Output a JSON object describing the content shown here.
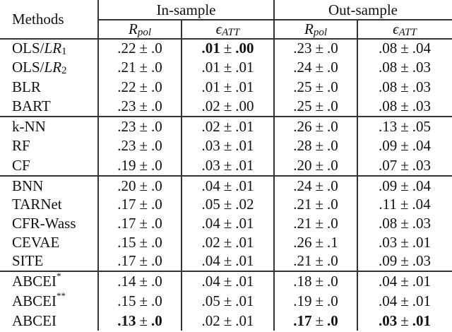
{
  "table": {
    "header": {
      "methods": "Methods",
      "groups": [
        "In-sample",
        "Out-sample"
      ],
      "metrics": [
        {
          "base": "R",
          "sub": "pol"
        },
        {
          "base": "ϵ",
          "sub": "ATT"
        },
        {
          "base": "R",
          "sub": "pol"
        },
        {
          "base": "ϵ",
          "sub": "ATT"
        }
      ]
    },
    "row_groups": [
      [
        {
          "method": "OLS/",
          "method_math": "LR",
          "method_sub": "1",
          "method_sup": "",
          "values": [
            {
              "mean": ".22",
              "std": ".0",
              "bold": false
            },
            {
              "mean": ".01",
              "std": ".00",
              "bold": true
            },
            {
              "mean": ".23",
              "std": ".0",
              "bold": false
            },
            {
              "mean": ".08",
              "std": ".04",
              "bold": false
            }
          ]
        },
        {
          "method": "OLS/",
          "method_math": "LR",
          "method_sub": "2",
          "method_sup": "",
          "values": [
            {
              "mean": ".21",
              "std": ".0",
              "bold": false
            },
            {
              "mean": ".01",
              "std": ".01",
              "bold": false
            },
            {
              "mean": ".24",
              "std": ".0",
              "bold": false
            },
            {
              "mean": ".08",
              "std": ".03",
              "bold": false
            }
          ]
        },
        {
          "method": "BLR",
          "method_math": "",
          "method_sub": "",
          "method_sup": "",
          "values": [
            {
              "mean": ".22",
              "std": ".0",
              "bold": false
            },
            {
              "mean": ".01",
              "std": ".01",
              "bold": false
            },
            {
              "mean": ".25",
              "std": ".0",
              "bold": false
            },
            {
              "mean": ".08",
              "std": ".03",
              "bold": false
            }
          ]
        },
        {
          "method": "BART",
          "method_math": "",
          "method_sub": "",
          "method_sup": "",
          "values": [
            {
              "mean": ".23",
              "std": ".0",
              "bold": false
            },
            {
              "mean": ".02",
              "std": ".00",
              "bold": false
            },
            {
              "mean": ".25",
              "std": ".0",
              "bold": false
            },
            {
              "mean": ".08",
              "std": ".03",
              "bold": false
            }
          ]
        }
      ],
      [
        {
          "method": "k-NN",
          "method_math": "",
          "method_sub": "",
          "method_sup": "",
          "values": [
            {
              "mean": ".23",
              "std": ".0",
              "bold": false
            },
            {
              "mean": ".02",
              "std": ".01",
              "bold": false
            },
            {
              "mean": ".26",
              "std": ".0",
              "bold": false
            },
            {
              "mean": ".13",
              "std": ".05",
              "bold": false
            }
          ]
        },
        {
          "method": "RF",
          "method_math": "",
          "method_sub": "",
          "method_sup": "",
          "values": [
            {
              "mean": ".23",
              "std": ".0",
              "bold": false
            },
            {
              "mean": ".03",
              "std": ".01",
              "bold": false
            },
            {
              "mean": ".28",
              "std": ".0",
              "bold": false
            },
            {
              "mean": ".09",
              "std": ".04",
              "bold": false
            }
          ]
        },
        {
          "method": "CF",
          "method_math": "",
          "method_sub": "",
          "method_sup": "",
          "values": [
            {
              "mean": ".19",
              "std": ".0",
              "bold": false
            },
            {
              "mean": ".03",
              "std": ".01",
              "bold": false
            },
            {
              "mean": ".20",
              "std": ".0",
              "bold": false
            },
            {
              "mean": ".07",
              "std": ".03",
              "bold": false
            }
          ]
        }
      ],
      [
        {
          "method": "BNN",
          "method_math": "",
          "method_sub": "",
          "method_sup": "",
          "values": [
            {
              "mean": ".20",
              "std": ".0",
              "bold": false
            },
            {
              "mean": ".04",
              "std": ".01",
              "bold": false
            },
            {
              "mean": ".24",
              "std": ".0",
              "bold": false
            },
            {
              "mean": ".09",
              "std": ".04",
              "bold": false
            }
          ]
        },
        {
          "method": "TARNet",
          "method_math": "",
          "method_sub": "",
          "method_sup": "",
          "values": [
            {
              "mean": ".17",
              "std": ".0",
              "bold": false
            },
            {
              "mean": ".05",
              "std": ".02",
              "bold": false
            },
            {
              "mean": ".21",
              "std": ".0",
              "bold": false
            },
            {
              "mean": ".11",
              "std": ".04",
              "bold": false
            }
          ]
        },
        {
          "method": "CFR-Wass",
          "method_math": "",
          "method_sub": "",
          "method_sup": "",
          "values": [
            {
              "mean": ".17",
              "std": ".0",
              "bold": false
            },
            {
              "mean": ".04",
              "std": ".01",
              "bold": false
            },
            {
              "mean": ".21",
              "std": ".0",
              "bold": false
            },
            {
              "mean": ".08",
              "std": ".03",
              "bold": false
            }
          ]
        },
        {
          "method": "CEVAE",
          "method_math": "",
          "method_sub": "",
          "method_sup": "",
          "values": [
            {
              "mean": ".15",
              "std": ".0",
              "bold": false
            },
            {
              "mean": ".02",
              "std": ".01",
              "bold": false
            },
            {
              "mean": ".26",
              "std": ".1",
              "bold": false
            },
            {
              "mean": ".03",
              "std": ".01",
              "bold": false
            }
          ]
        },
        {
          "method": "SITE",
          "method_math": "",
          "method_sub": "",
          "method_sup": "",
          "values": [
            {
              "mean": ".17",
              "std": ".0",
              "bold": false
            },
            {
              "mean": ".04",
              "std": ".01",
              "bold": false
            },
            {
              "mean": ".21",
              "std": ".0",
              "bold": false
            },
            {
              "mean": ".09",
              "std": ".03",
              "bold": false
            }
          ]
        }
      ],
      [
        {
          "method": "ABCEI",
          "method_math": "",
          "method_sub": "",
          "method_sup": "*",
          "values": [
            {
              "mean": ".14",
              "std": ".0",
              "bold": false
            },
            {
              "mean": ".04",
              "std": ".01",
              "bold": false
            },
            {
              "mean": ".18",
              "std": ".0",
              "bold": false
            },
            {
              "mean": ".04",
              "std": ".01",
              "bold": false
            }
          ]
        },
        {
          "method": "ABCEI",
          "method_math": "",
          "method_sub": "",
          "method_sup": "**",
          "values": [
            {
              "mean": ".15",
              "std": ".0",
              "bold": false
            },
            {
              "mean": ".05",
              "std": ".01",
              "bold": false
            },
            {
              "mean": ".19",
              "std": ".0",
              "bold": false
            },
            {
              "mean": ".04",
              "std": ".01",
              "bold": false
            }
          ]
        },
        {
          "method": "ABCEI",
          "method_math": "",
          "method_sub": "",
          "method_sup": "",
          "values": [
            {
              "mean": ".13",
              "std": ".0",
              "bold": true
            },
            {
              "mean": ".02",
              "std": ".01",
              "bold": false
            },
            {
              "mean": ".17",
              "std": ".0",
              "bold": true
            },
            {
              "mean": ".03",
              "std": ".01",
              "bold": true
            }
          ]
        }
      ]
    ],
    "pm_symbol": "±"
  }
}
